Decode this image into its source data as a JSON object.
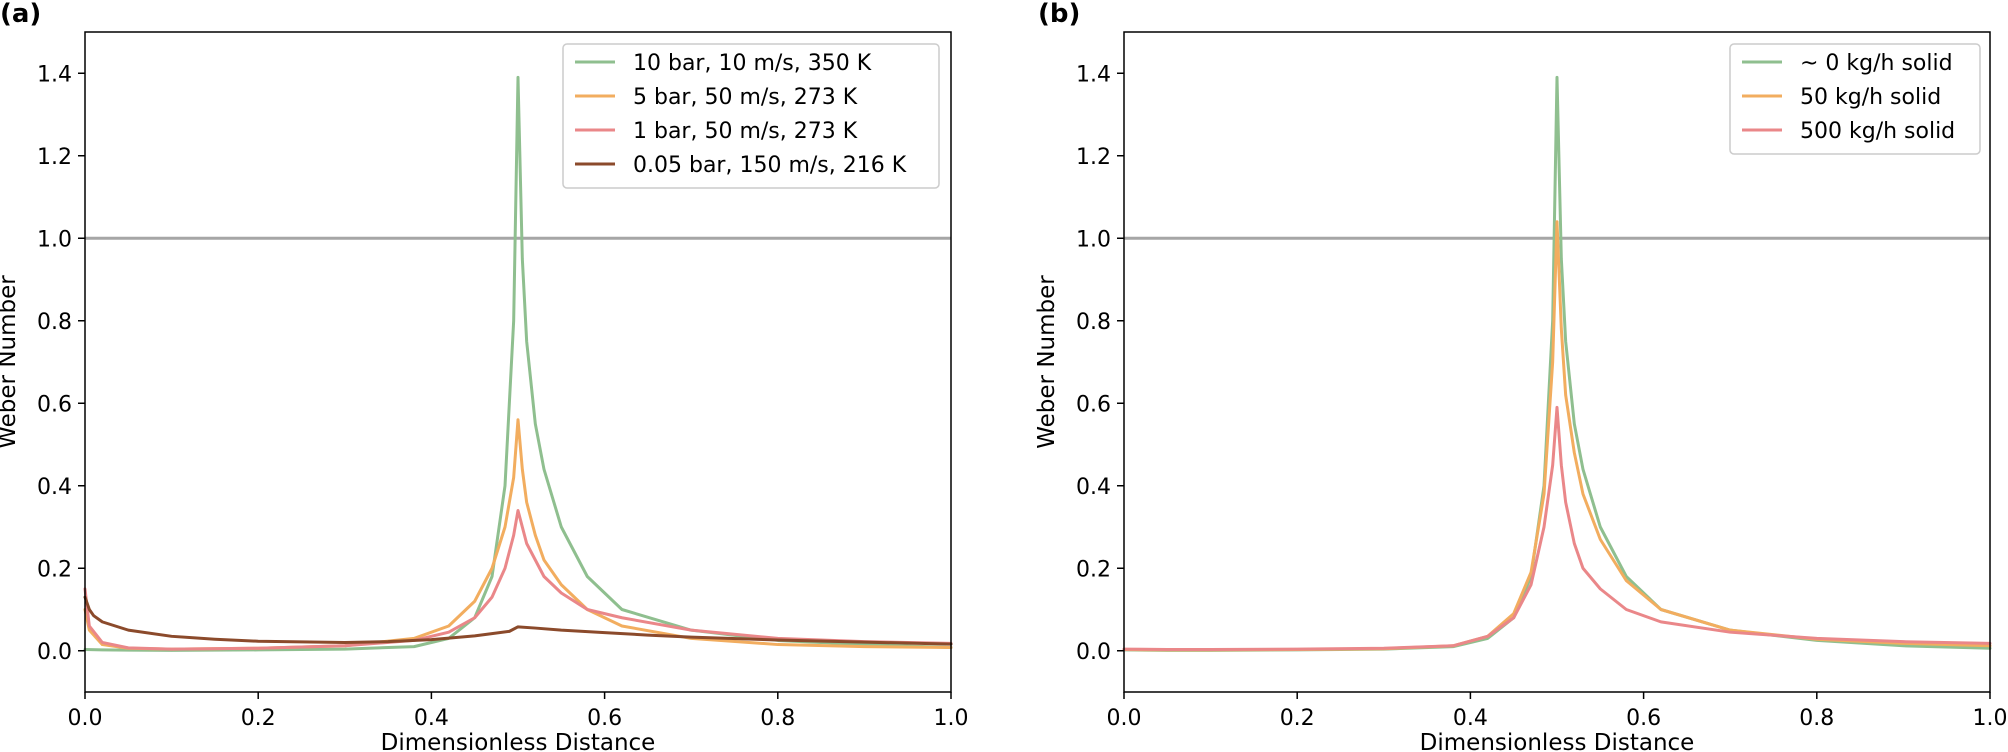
{
  "colors": {
    "green": "#8fbf8f",
    "orange": "#f2ad5f",
    "pink": "#ea8789",
    "brown": "#8b4a2b",
    "reference_line": "#a6a6a6"
  },
  "chart_data": [
    {
      "panel_label": "(a)",
      "type": "line",
      "xlabel": "Dimensionless Distance",
      "ylabel": "Weber Number",
      "xlim": [
        0.0,
        1.0
      ],
      "ylim": [
        -0.1,
        1.5
      ],
      "xticks": [
        "0.0",
        "0.2",
        "0.4",
        "0.6",
        "0.8",
        "1.0"
      ],
      "yticks": [
        "0.0",
        "0.2",
        "0.4",
        "0.6",
        "0.8",
        "1.0",
        "1.2",
        "1.4"
      ],
      "reference_line": {
        "y": 1.0
      },
      "legend_position": "top-right",
      "series": [
        {
          "name": "10 bar, 10 m/s, 350 K",
          "color": "#8fbf8f",
          "x": [
            0.0,
            0.02,
            0.1,
            0.2,
            0.3,
            0.38,
            0.42,
            0.45,
            0.47,
            0.485,
            0.495,
            0.5,
            0.505,
            0.51,
            0.52,
            0.53,
            0.55,
            0.58,
            0.62,
            0.7,
            0.8,
            0.9,
            1.0
          ],
          "y": [
            0.003,
            0.002,
            0.001,
            0.002,
            0.004,
            0.01,
            0.03,
            0.08,
            0.18,
            0.4,
            0.8,
            1.39,
            0.95,
            0.75,
            0.55,
            0.44,
            0.3,
            0.18,
            0.1,
            0.05,
            0.025,
            0.015,
            0.008
          ]
        },
        {
          "name": "5 bar, 50 m/s, 273 K",
          "color": "#f2ad5f",
          "x": [
            0.0,
            0.005,
            0.02,
            0.05,
            0.1,
            0.2,
            0.3,
            0.38,
            0.42,
            0.45,
            0.47,
            0.485,
            0.495,
            0.5,
            0.505,
            0.51,
            0.52,
            0.53,
            0.55,
            0.58,
            0.62,
            0.7,
            0.8,
            0.9,
            1.0
          ],
          "y": [
            0.1,
            0.05,
            0.015,
            0.006,
            0.004,
            0.006,
            0.012,
            0.03,
            0.06,
            0.12,
            0.2,
            0.3,
            0.42,
            0.56,
            0.44,
            0.36,
            0.28,
            0.22,
            0.16,
            0.1,
            0.06,
            0.03,
            0.015,
            0.01,
            0.008
          ]
        },
        {
          "name": "1 bar, 50 m/s, 273 K",
          "color": "#ea8789",
          "x": [
            0.0,
            0.005,
            0.02,
            0.05,
            0.1,
            0.2,
            0.3,
            0.38,
            0.42,
            0.45,
            0.47,
            0.485,
            0.495,
            0.5,
            0.505,
            0.51,
            0.52,
            0.53,
            0.55,
            0.58,
            0.62,
            0.7,
            0.8,
            0.9,
            1.0
          ],
          "y": [
            0.15,
            0.06,
            0.02,
            0.007,
            0.004,
            0.006,
            0.012,
            0.025,
            0.045,
            0.08,
            0.13,
            0.2,
            0.28,
            0.34,
            0.3,
            0.26,
            0.22,
            0.18,
            0.14,
            0.1,
            0.08,
            0.05,
            0.03,
            0.022,
            0.018
          ]
        },
        {
          "name": "0.05 bar, 150 m/s, 216 K",
          "color": "#8b4a2b",
          "x": [
            0.0,
            0.005,
            0.01,
            0.02,
            0.05,
            0.1,
            0.15,
            0.2,
            0.3,
            0.35,
            0.4,
            0.45,
            0.49,
            0.5,
            0.52,
            0.55,
            0.6,
            0.65,
            0.7,
            0.8,
            0.9,
            1.0
          ],
          "y": [
            0.13,
            0.1,
            0.085,
            0.07,
            0.05,
            0.035,
            0.028,
            0.023,
            0.02,
            0.022,
            0.027,
            0.036,
            0.047,
            0.058,
            0.055,
            0.05,
            0.044,
            0.038,
            0.033,
            0.026,
            0.021,
            0.016
          ]
        }
      ]
    },
    {
      "panel_label": "(b)",
      "type": "line",
      "xlabel": "Dimensionless Distance",
      "ylabel": "Weber Number",
      "xlim": [
        0.0,
        1.0
      ],
      "ylim": [
        -0.1,
        1.5
      ],
      "xticks": [
        "0.0",
        "0.2",
        "0.4",
        "0.6",
        "0.8",
        "1.0"
      ],
      "yticks": [
        "0.0",
        "0.2",
        "0.4",
        "0.6",
        "0.8",
        "1.0",
        "1.2",
        "1.4"
      ],
      "reference_line": {
        "y": 1.0
      },
      "legend_position": "top-right",
      "series": [
        {
          "name": "~ 0 kg/h solid",
          "color": "#8fbf8f",
          "x": [
            0.0,
            0.05,
            0.1,
            0.2,
            0.3,
            0.38,
            0.42,
            0.45,
            0.47,
            0.485,
            0.495,
            0.5,
            0.505,
            0.51,
            0.52,
            0.53,
            0.55,
            0.58,
            0.62,
            0.7,
            0.8,
            0.9,
            1.0
          ],
          "y": [
            0.002,
            0.001,
            0.001,
            0.002,
            0.004,
            0.01,
            0.03,
            0.08,
            0.18,
            0.4,
            0.8,
            1.39,
            0.95,
            0.75,
            0.55,
            0.44,
            0.3,
            0.18,
            0.1,
            0.05,
            0.025,
            0.012,
            0.006
          ]
        },
        {
          "name": "50 kg/h solid",
          "color": "#f2ad5f",
          "x": [
            0.0,
            0.05,
            0.1,
            0.2,
            0.3,
            0.38,
            0.42,
            0.45,
            0.47,
            0.485,
            0.495,
            0.5,
            0.505,
            0.51,
            0.52,
            0.53,
            0.55,
            0.58,
            0.62,
            0.7,
            0.8,
            0.9,
            1.0
          ],
          "y": [
            0.003,
            0.002,
            0.002,
            0.003,
            0.005,
            0.012,
            0.035,
            0.09,
            0.19,
            0.38,
            0.7,
            1.04,
            0.78,
            0.62,
            0.48,
            0.38,
            0.27,
            0.17,
            0.1,
            0.05,
            0.028,
            0.018,
            0.012
          ]
        },
        {
          "name": "500 kg/h solid",
          "color": "#ea8789",
          "x": [
            0.0,
            0.05,
            0.1,
            0.2,
            0.3,
            0.38,
            0.42,
            0.45,
            0.47,
            0.485,
            0.495,
            0.5,
            0.505,
            0.51,
            0.52,
            0.53,
            0.55,
            0.58,
            0.62,
            0.7,
            0.8,
            0.9,
            1.0
          ],
          "y": [
            0.004,
            0.003,
            0.003,
            0.004,
            0.006,
            0.012,
            0.035,
            0.08,
            0.16,
            0.3,
            0.45,
            0.59,
            0.45,
            0.36,
            0.26,
            0.2,
            0.15,
            0.1,
            0.07,
            0.045,
            0.03,
            0.022,
            0.018
          ]
        }
      ]
    }
  ]
}
